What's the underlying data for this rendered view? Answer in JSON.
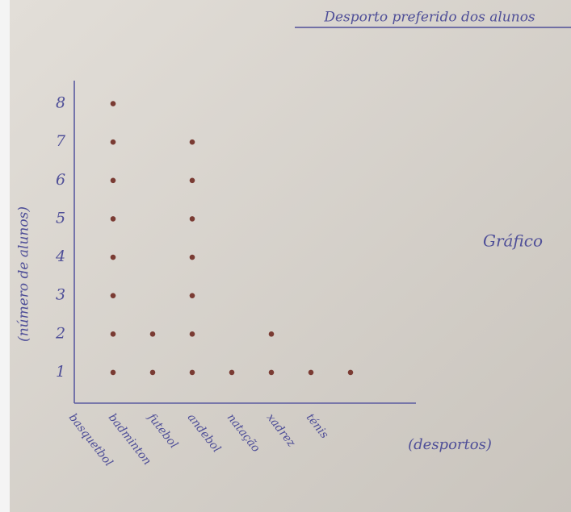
{
  "chart_data": {
    "type": "dot",
    "title": "Desporto preferido dos alunos",
    "annotation": "Gráfico",
    "y_label": "(número de alunos)",
    "x_label": "(desportos)",
    "categories": [
      "basquetbol",
      "badminton",
      "futebol",
      "andebol",
      "natação",
      "xadrez",
      "ténis"
    ],
    "values": [
      8,
      2,
      7,
      1,
      2,
      1,
      1
    ],
    "color": "#7a3b33",
    "ylim": [
      0.2,
      8.6
    ],
    "yticks": [
      1,
      2,
      3,
      4,
      5,
      6,
      7,
      8
    ]
  }
}
